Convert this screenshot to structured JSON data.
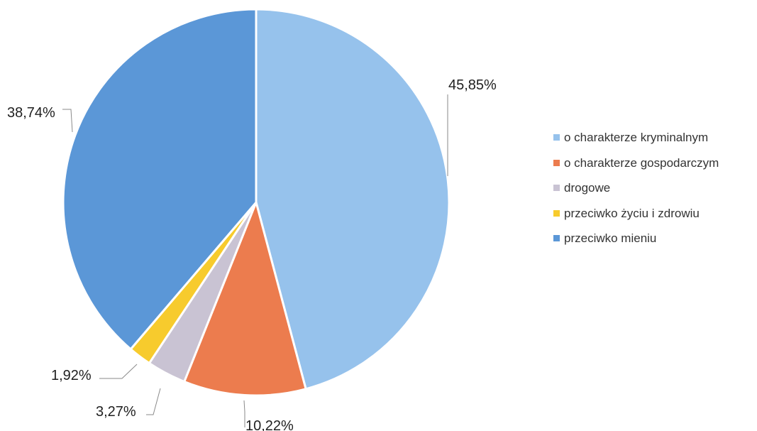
{
  "chart_data": {
    "type": "pie",
    "categories": [
      "o charakterze kryminalnym",
      "o charakterze gospodarczym",
      "drogowe",
      "przeciwko życiu i zdrowiu",
      "przeciwko mieniu"
    ],
    "values": [
      45.85,
      10.22,
      3.27,
      1.92,
      38.74
    ],
    "labels": [
      "45,85%",
      "10,22%",
      "3,27%",
      "1,92%",
      "38,74%"
    ],
    "colors": [
      "#96c2ec",
      "#ec7c4e",
      "#c9c3d3",
      "#f7cb2d",
      "#5b97d7"
    ],
    "legend_position": "right",
    "start_angle": "top",
    "direction": "clockwise"
  }
}
